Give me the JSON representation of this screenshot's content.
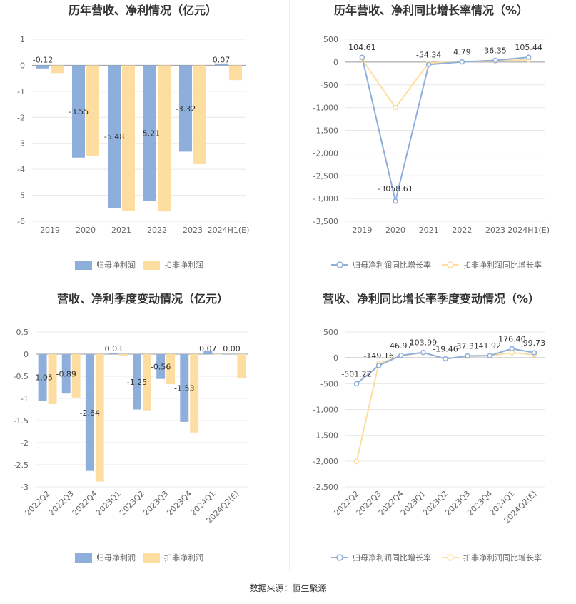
{
  "colors": {
    "series_a": "#8eaedb",
    "series_b": "#fedea0",
    "axis_text": "#666666",
    "grid": "#e8e8e8",
    "title": "#333333",
    "label": "#333333"
  },
  "footer": {
    "text": "数据来源：恒生聚源"
  },
  "chart_data": [
    {
      "type": "bar",
      "title": "历年营收、净利情况（亿元）",
      "categories": [
        "2019",
        "2020",
        "2021",
        "2022",
        "2023",
        "2024H1(E)"
      ],
      "ylim": [
        -6,
        1
      ],
      "yticks": [
        1,
        0,
        -1,
        -2,
        -3,
        -4,
        -5,
        -6
      ],
      "ytick_labels": [
        "1",
        "0",
        "-1",
        "-2",
        "-3",
        "-4",
        "-5",
        "-6"
      ],
      "grid": true,
      "legend_position": "bottom",
      "series": [
        {
          "name": "归母净利润",
          "values": [
            -0.12,
            -3.55,
            -5.48,
            -5.21,
            -3.32,
            0.07
          ],
          "labels": [
            "-0.12",
            "-3.55",
            "-5.48",
            "-5.21",
            "-3.32",
            "0.07"
          ]
        },
        {
          "name": "扣非净利润",
          "values": [
            -0.3,
            -3.5,
            -5.6,
            -5.62,
            -3.8,
            -0.57
          ]
        }
      ]
    },
    {
      "type": "line",
      "title": "历年营收、净利同比增长率情况（%）",
      "categories": [
        "2019",
        "2020",
        "2021",
        "2022",
        "2023",
        "2024H1(E)"
      ],
      "ylim": [
        -3500,
        500
      ],
      "yticks": [
        500,
        0,
        -500,
        -1000,
        -1500,
        -2000,
        -2500,
        -3000,
        -3500
      ],
      "ytick_labels": [
        "500",
        "0",
        "-500",
        "-1,000",
        "-1,500",
        "-2,000",
        "-2,500",
        "-3,000",
        "-3,500"
      ],
      "grid": true,
      "legend_position": "bottom",
      "series": [
        {
          "name": "归母净利润同比增长率",
          "values": [
            104.61,
            -3058.61,
            -54.34,
            4.79,
            36.35,
            105.44
          ],
          "labels": [
            "104.61",
            "-3058.61",
            "-54.34",
            "4.79",
            "36.35",
            "105.44"
          ]
        },
        {
          "name": "扣非净利润同比增长率",
          "values": [
            60,
            -1000,
            -20,
            5,
            25,
            50
          ]
        }
      ]
    },
    {
      "type": "bar",
      "title": "营收、净利季度变动情况（亿元）",
      "categories": [
        "2022Q2",
        "2022Q3",
        "2022Q4",
        "2023Q1",
        "2023Q2",
        "2023Q3",
        "2023Q4",
        "2024Q1",
        "2024Q2(E)"
      ],
      "ylim": [
        -3,
        0.5
      ],
      "yticks": [
        0.5,
        0,
        -0.5,
        -1,
        -1.5,
        -2,
        -2.5,
        -3
      ],
      "ytick_labels": [
        "0.5",
        "0",
        "-0.5",
        "-1",
        "-1.5",
        "-2",
        "-2.5",
        "-3"
      ],
      "grid": true,
      "legend_position": "bottom",
      "series": [
        {
          "name": "归母净利润",
          "values": [
            -1.05,
            -0.89,
            -2.64,
            0.03,
            -1.25,
            -0.56,
            -1.53,
            0.07,
            0.0
          ],
          "labels": [
            "-1.05",
            "-0.89",
            "-2.64",
            "0.03",
            "-1.25",
            "-0.56",
            "-1.53",
            "0.07",
            "0.00"
          ]
        },
        {
          "name": "扣非净利润",
          "values": [
            -1.13,
            -0.98,
            -2.88,
            -0.04,
            -1.27,
            -0.68,
            -1.77,
            0.0,
            -0.55
          ]
        }
      ]
    },
    {
      "type": "line",
      "title": "营收、净利同比增长率季度变动情况（%）",
      "categories": [
        "2022Q2",
        "2022Q3",
        "2022Q4",
        "2023Q1",
        "2023Q2",
        "2023Q3",
        "2023Q4",
        "2024Q1",
        "2024Q2(E)"
      ],
      "ylim": [
        -2500,
        500
      ],
      "yticks": [
        500,
        0,
        -500,
        -1000,
        -1500,
        -2000,
        -2500
      ],
      "ytick_labels": [
        "500",
        "0",
        "-500",
        "-1,000",
        "-1,500",
        "-2,000",
        "-2,500"
      ],
      "grid": true,
      "legend_position": "bottom",
      "series": [
        {
          "name": "归母净利润同比增长率",
          "values": [
            -501.22,
            -149.16,
            46.97,
            103.99,
            -19.46,
            37.31,
            41.92,
            176.4,
            99.73
          ],
          "labels": [
            "-501.22",
            "-149.16",
            "46.97",
            "103.99",
            "-19.46",
            "37.31",
            "41.92",
            "176.40",
            "99.73"
          ]
        },
        {
          "name": "扣非净利润同比增长率",
          "values": [
            -2010,
            -110,
            40,
            100,
            -20,
            30,
            40,
            100,
            60
          ]
        }
      ]
    }
  ]
}
